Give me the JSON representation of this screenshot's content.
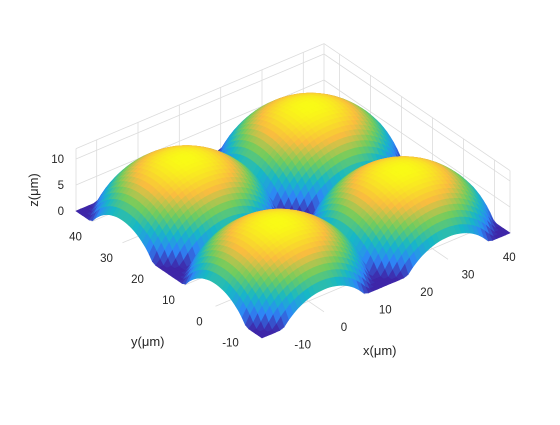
{
  "chart_data": {
    "type": "surface",
    "title": "",
    "xlabel": "x(μm)",
    "ylabel": "y(μm)",
    "zlabel": "z(μm)",
    "xlim": [
      -15,
      45
    ],
    "ylim": [
      -15,
      45
    ],
    "zlim": [
      0,
      12
    ],
    "xticks": [
      "-10",
      "0",
      "10",
      "20",
      "30",
      "40"
    ],
    "yticks": [
      "-10",
      "0",
      "10",
      "20",
      "30",
      "40"
    ],
    "zticks": [
      "0",
      "5",
      "10"
    ],
    "grid": true,
    "colormap": "parula",
    "colors": [
      "#3e26a8",
      "#2e87f7",
      "#17b8c5",
      "#72cc5d",
      "#f9bd3f",
      "#f9fb15"
    ],
    "surface": {
      "description_shown": "four spherical caps on a 2x2 grid",
      "cap_centers": [
        [
          0,
          0
        ],
        [
          30,
          0
        ],
        [
          0,
          30
        ],
        [
          30,
          30
        ]
      ],
      "cap_radius": 18,
      "cap_height": 11
    }
  }
}
